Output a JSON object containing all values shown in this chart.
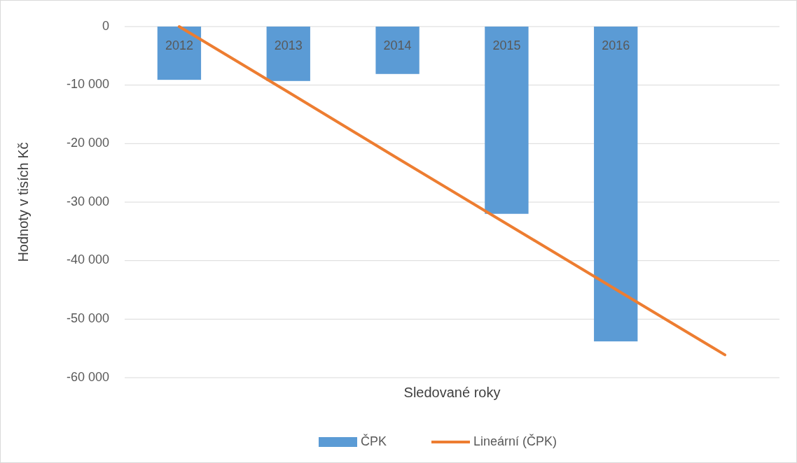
{
  "chart_data": {
    "type": "bar",
    "xlabel": "Sledované roky",
    "ylabel": "Hodnoty v tisích Kč",
    "categories": [
      "2012",
      "2013",
      "2014",
      "2015",
      "2016",
      null
    ],
    "series": [
      {
        "name": "ČPK",
        "color": "#5b9bd5",
        "values": [
          -9100,
          -9300,
          -8100,
          -32000,
          -53800,
          null
        ]
      },
      {
        "name": "Lineární (ČPK)",
        "type": "line",
        "color": "#ed7d31",
        "values": [
          0,
          -11200,
          -22500,
          -33700,
          -44900,
          -56100
        ]
      }
    ],
    "ylim": [
      -60000,
      0
    ],
    "yticks": [
      {
        "value": 0,
        "label": "0"
      },
      {
        "value": -10000,
        "label": "-10 000"
      },
      {
        "value": -20000,
        "label": "-20 000"
      },
      {
        "value": -30000,
        "label": "-30 000"
      },
      {
        "value": -40000,
        "label": "-40 000"
      },
      {
        "value": -50000,
        "label": "-50 000"
      },
      {
        "value": -60000,
        "label": "-60 000"
      }
    ],
    "grid": "y",
    "legend": "bottom",
    "line_style": "solid",
    "marker": "none"
  }
}
